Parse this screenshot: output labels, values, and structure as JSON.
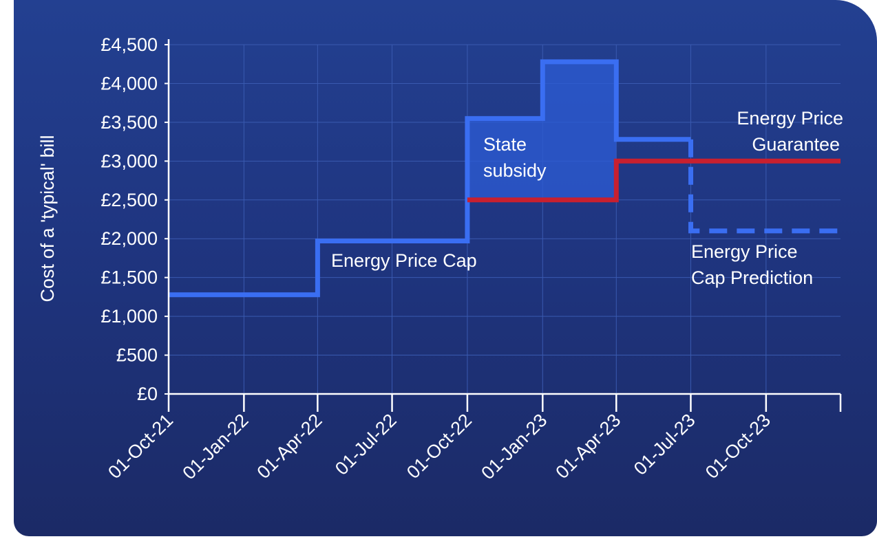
{
  "colors": {
    "background_top": "#234091",
    "background_bottom": "#1b2a66",
    "price_cap": "#3a6ef2",
    "subsidy_fill": "#2c5cd6",
    "guarantee": "#c8202f",
    "grid": "#3a5ab0",
    "axis": "#ffffff"
  },
  "chart_data": {
    "type": "line",
    "title": "",
    "xlabel": "",
    "ylabel": "Cost of a 'typical' bill",
    "x_ticks": [
      "01-Oct-21",
      "01-Jan-22",
      "01-Apr-22",
      "01-Jul-22",
      "01-Oct-22",
      "01-Jan-23",
      "01-Apr-23",
      "01-Jul-23",
      "01-Oct-23"
    ],
    "y_ticks": [
      "£0",
      "£500",
      "£1,000",
      "£1,500",
      "£2,000",
      "£2,500",
      "£3,000",
      "£3,500",
      "£4,000",
      "£4,500"
    ],
    "ylim": [
      0,
      4500
    ],
    "xlim": [
      "01-Oct-21",
      "31-Dec-23"
    ],
    "grid": true,
    "series": [
      {
        "name": "Energy Price Cap",
        "style": "solid step",
        "points": [
          [
            "01-Oct-21",
            1277
          ],
          [
            "01-Apr-22",
            1277
          ],
          [
            "01-Apr-22",
            1971
          ],
          [
            "01-Oct-22",
            1971
          ],
          [
            "01-Oct-22",
            3549
          ],
          [
            "01-Jan-23",
            3549
          ],
          [
            "01-Jan-23",
            4279
          ],
          [
            "01-Apr-23",
            4279
          ],
          [
            "01-Apr-23",
            3280
          ],
          [
            "01-Jul-23",
            3280
          ]
        ]
      },
      {
        "name": "Energy Price Cap Prediction",
        "style": "dashed step",
        "points": [
          [
            "01-Jul-23",
            3280
          ],
          [
            "01-Jul-23",
            2100
          ],
          [
            "31-Dec-23",
            2100
          ]
        ]
      },
      {
        "name": "Energy Price Guarantee",
        "style": "solid step",
        "points": [
          [
            "01-Oct-22",
            2500
          ],
          [
            "01-Apr-23",
            2500
          ],
          [
            "01-Apr-23",
            3000
          ],
          [
            "31-Dec-23",
            3000
          ]
        ]
      }
    ],
    "shaded_regions": [
      {
        "name": "State subsidy",
        "segments": [
          {
            "from": "01-Oct-22",
            "to": "01-Jan-23",
            "lower": 2500,
            "upper": 3549
          },
          {
            "from": "01-Jan-23",
            "to": "01-Apr-23",
            "lower": 2500,
            "upper": 4279
          }
        ]
      }
    ],
    "annotations": {
      "price_cap": "Energy Price Cap",
      "subsidy_line1": "State",
      "subsidy_line2": "subsidy",
      "guarantee_line1": "Energy Price",
      "guarantee_line2": "Guarantee",
      "prediction_line1": "Energy Price",
      "prediction_line2": "Cap Prediction"
    }
  }
}
